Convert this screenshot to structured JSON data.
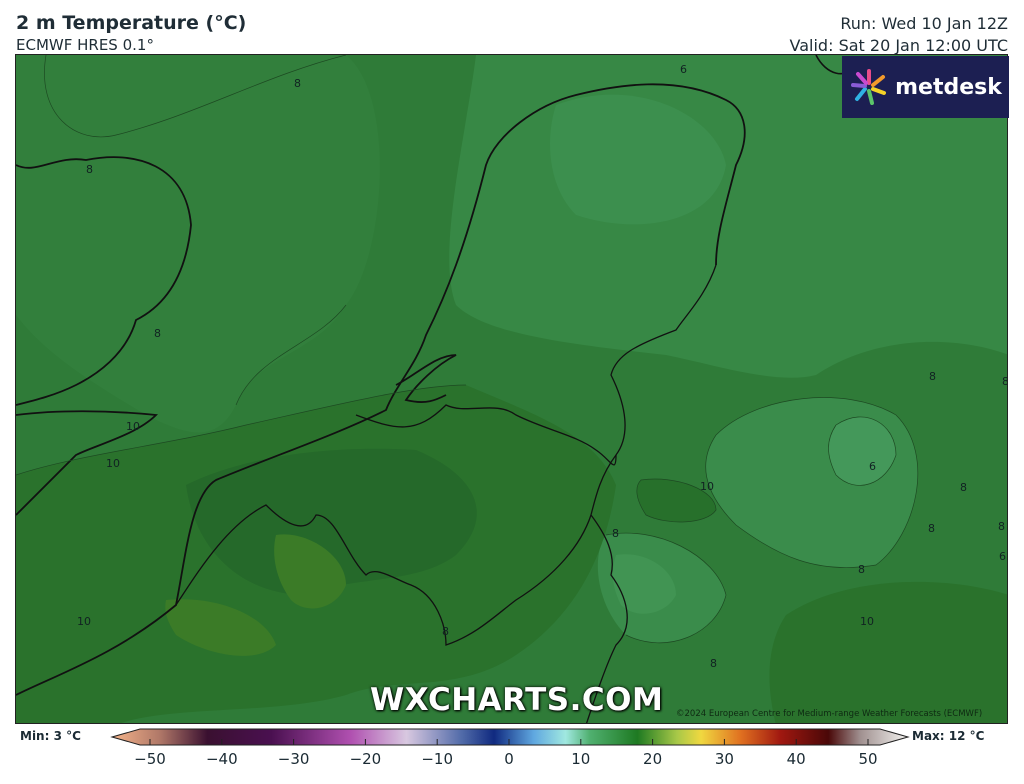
{
  "header": {
    "title": "2 m Temperature (°C)",
    "model": "ECMWF HRES 0.1°",
    "run": "Run: Wed 10 Jan 12Z",
    "valid": "Valid: Sat 20 Jan 12:00 UTC"
  },
  "logo": {
    "text": "metdesk"
  },
  "watermark": "WXCHARTS.COM",
  "copyright": "©2024 European Centre for Medium-range Weather Forecasts (ECMWF)",
  "legend": {
    "min_label": "Min: 3 °C",
    "max_label": "Max: 12 °C",
    "ticks": [
      "−50",
      "−40",
      "−30",
      "−20",
      "−10",
      "0",
      "10",
      "20",
      "30",
      "40",
      "50"
    ],
    "range": [
      -50,
      50
    ],
    "unit": "°C"
  },
  "map": {
    "region": "Netherlands, Belgium, NW Germany",
    "contour_labels": [
      "8",
      "6",
      "8",
      "8",
      "10",
      "10",
      "10",
      "8",
      "8",
      "8",
      "6",
      "8",
      "8",
      "8",
      "6",
      "10",
      "8",
      "8",
      "10",
      "8"
    ],
    "colors": {
      "base": "#2f7a37",
      "cool": "#3d8f4f",
      "warm": "#287129",
      "warmest": "#3a7a22"
    }
  }
}
